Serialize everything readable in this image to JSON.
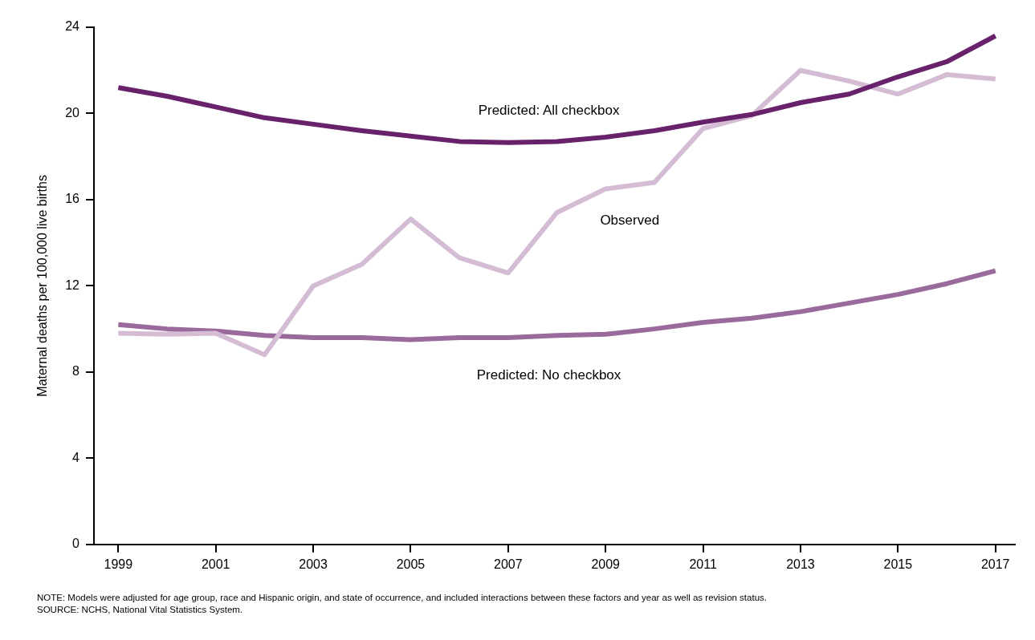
{
  "chart_data": {
    "type": "line",
    "ylabel": "Maternal deaths per 100,000 live births",
    "x": [
      1999,
      2000,
      2001,
      2002,
      2003,
      2004,
      2005,
      2006,
      2007,
      2008,
      2009,
      2010,
      2011,
      2012,
      2013,
      2014,
      2015,
      2016,
      2017
    ],
    "series": [
      {
        "name": "Predicted: All checkbox",
        "color": "#68226b",
        "values": [
          21.2,
          20.8,
          20.3,
          19.8,
          19.5,
          19.2,
          18.95,
          18.7,
          18.65,
          18.7,
          18.9,
          19.2,
          19.6,
          19.95,
          20.5,
          20.9,
          21.7,
          22.4,
          23.6
        ]
      },
      {
        "name": "Observed",
        "color": "#d4bdd4",
        "values": [
          9.8,
          9.75,
          9.8,
          8.8,
          12.0,
          13.0,
          15.1,
          13.3,
          12.6,
          15.4,
          16.5,
          16.8,
          19.3,
          19.9,
          22.0,
          21.5,
          20.9,
          21.8,
          21.6
        ]
      },
      {
        "name": "Predicted: No checkbox",
        "color": "#9a6a9d",
        "values": [
          10.2,
          10.0,
          9.9,
          9.7,
          9.6,
          9.6,
          9.5,
          9.6,
          9.6,
          9.7,
          9.75,
          10.0,
          10.3,
          10.5,
          10.8,
          11.2,
          11.6,
          12.1,
          12.7
        ]
      }
    ],
    "xlim": [
      1998.5,
      2017.4
    ],
    "xticks": [
      1999,
      2001,
      2003,
      2005,
      2007,
      2009,
      2011,
      2013,
      2015,
      2017
    ],
    "ylim": [
      0,
      24
    ],
    "yticks": [
      0,
      4,
      8,
      12,
      16,
      20,
      24
    ],
    "grid": false,
    "legend": false,
    "marker": "none",
    "line_style": "solid",
    "annotations": [
      "NOTE: Models were adjusted for age group, race and Hispanic origin, and state of occurrence, and included interactions between these factors and year as well as revision status.",
      "SOURCE: NCHS, National Vital Statistics System."
    ]
  }
}
